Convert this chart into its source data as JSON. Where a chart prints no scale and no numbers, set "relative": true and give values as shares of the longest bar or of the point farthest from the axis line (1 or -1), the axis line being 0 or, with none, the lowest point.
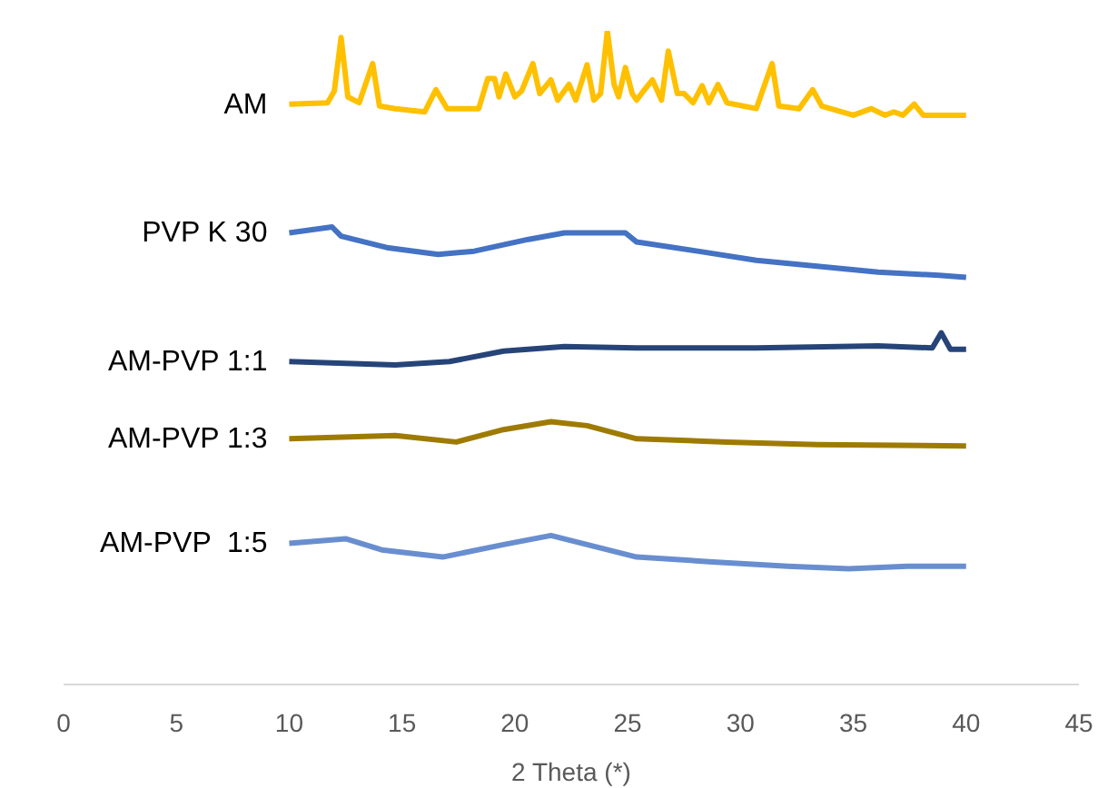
{
  "chart_data": {
    "type": "line",
    "relative": true,
    "xlabel": "2 Theta (*)",
    "xlim": [
      0,
      45
    ],
    "xticks": [
      0,
      5,
      10,
      15,
      20,
      25,
      30,
      35,
      40,
      45
    ],
    "series": [
      {
        "name": "AM",
        "color": "#ffc000",
        "x": [
          10,
          11.7,
          12.0,
          12.3,
          12.6,
          13.1,
          13.7,
          14.0,
          14.7,
          16.0,
          16.5,
          17.0,
          18.4,
          18.8,
          19.1,
          19.3,
          19.6,
          20.0,
          20.3,
          20.8,
          21.1,
          21.6,
          21.9,
          22.4,
          22.7,
          23.2,
          23.5,
          23.8,
          24.1,
          24.4,
          24.6,
          24.9,
          25.2,
          25.4,
          25.7,
          26.1,
          26.5,
          26.8,
          27.2,
          27.5,
          27.9,
          28.3,
          28.6,
          29.0,
          29.4,
          30.7,
          31.4,
          31.7,
          32.6,
          33.2,
          33.6,
          35.0,
          35.8,
          36.4,
          36.8,
          37.2,
          37.7,
          38.1,
          40
        ],
        "values": [
          0.888,
          0.89,
          0.908,
          0.99,
          0.899,
          0.89,
          0.95,
          0.885,
          0.881,
          0.876,
          0.91,
          0.881,
          0.881,
          0.927,
          0.927,
          0.899,
          0.934,
          0.899,
          0.908,
          0.95,
          0.904,
          0.925,
          0.894,
          0.918,
          0.894,
          0.948,
          0.894,
          0.904,
          1.0,
          0.918,
          0.899,
          0.944,
          0.904,
          0.894,
          0.908,
          0.925,
          0.894,
          0.969,
          0.904,
          0.904,
          0.89,
          0.916,
          0.89,
          0.918,
          0.89,
          0.881,
          0.95,
          0.885,
          0.881,
          0.91,
          0.885,
          0.871,
          0.881,
          0.871,
          0.876,
          0.871,
          0.888,
          0.871,
          0.871
        ]
      },
      {
        "name": "PVP K 30",
        "color": "#4472c4",
        "x": [
          10,
          11.9,
          12.3,
          14.4,
          16.6,
          18.2,
          20.6,
          22.2,
          24.9,
          25.4,
          28.1,
          30.7,
          33.4,
          36.1,
          38.8,
          40
        ],
        "values": [
          0.691,
          0.7,
          0.686,
          0.668,
          0.658,
          0.663,
          0.681,
          0.691,
          0.691,
          0.677,
          0.663,
          0.649,
          0.64,
          0.631,
          0.626,
          0.623
        ]
      },
      {
        "name": "AM-PVP 1:1",
        "color": "#264478",
        "x": [
          10,
          14.7,
          17.1,
          19.5,
          22.2,
          25.4,
          30.7,
          36.1,
          38.5,
          38.9,
          39.3,
          40
        ],
        "values": [
          0.494,
          0.489,
          0.494,
          0.51,
          0.517,
          0.515,
          0.515,
          0.518,
          0.515,
          0.538,
          0.513,
          0.513
        ]
      },
      {
        "name": "AM-PVP 1:3",
        "color": "#9e7b00",
        "x": [
          10,
          14.7,
          17.4,
          19.5,
          21.6,
          23.2,
          25.4,
          29.4,
          33.4,
          40
        ],
        "values": [
          0.376,
          0.381,
          0.371,
          0.39,
          0.402,
          0.396,
          0.376,
          0.371,
          0.367,
          0.365
        ]
      },
      {
        "name": "AM-PVP  1:5",
        "color": "#698ed0",
        "x": [
          10,
          12.5,
          14.1,
          16.8,
          19.5,
          21.6,
          23.2,
          25.4,
          28.6,
          32.1,
          34.8,
          37.4,
          40
        ],
        "values": [
          0.216,
          0.223,
          0.206,
          0.195,
          0.214,
          0.228,
          0.214,
          0.195,
          0.188,
          0.181,
          0.177,
          0.181,
          0.181
        ]
      }
    ]
  }
}
